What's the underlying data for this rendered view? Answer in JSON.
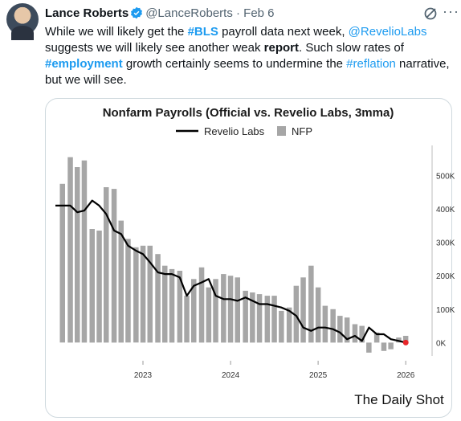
{
  "tweet": {
    "author_name": "Lance Roberts",
    "handle_date": "@LanceRoberts · Feb 6",
    "text_parts": [
      {
        "t": "While we will likely get the ",
        "s": "plain"
      },
      {
        "t": "#BLS",
        "s": "tagbold"
      },
      {
        "t": " payroll data next week, ",
        "s": "plain"
      },
      {
        "t": "@RevelioLabs",
        "s": "link"
      },
      {
        "t": " suggests we will likely see another weak ",
        "s": "plain"
      },
      {
        "t": "report",
        "s": "bold"
      },
      {
        "t": ". Such slow rates of ",
        "s": "plain"
      },
      {
        "t": "#employment",
        "s": "tagbold"
      },
      {
        "t": " growth certainly seems to undermine the ",
        "s": "plain"
      },
      {
        "t": "#reflation",
        "s": "link"
      },
      {
        "t": " narrative, but we will see.",
        "s": "plain"
      }
    ]
  },
  "icons": {
    "verified": "verified-badge-icon",
    "grok": "grok-icon",
    "more": "more-options-icon"
  },
  "colors": {
    "link": "#1d9bf0",
    "text": "#0f1419",
    "muted": "#536471",
    "bars": "#a6a6a6",
    "line": "#000000",
    "endpoint": "#e8262a"
  },
  "chart_data": {
    "type": "bar",
    "title": "Nonfarm Payrolls (Official vs. Revelio Labs, 3mma)",
    "legend": [
      "Revelio Labs",
      "NFP"
    ],
    "legend_position": "top",
    "y_ticks": [
      "0K",
      "100K",
      "200K",
      "300K",
      "400K",
      "500K"
    ],
    "x_ticks": [
      "2023",
      "2024",
      "2025",
      "2026"
    ],
    "ylim": [
      -40,
      590
    ],
    "xlim": [
      2022.0,
      2026.2
    ],
    "grid": false,
    "source": "The Daily Shot",
    "series": [
      {
        "name": "NFP",
        "kind": "bar",
        "x": [
          2022.08,
          2022.17,
          2022.25,
          2022.33,
          2022.42,
          2022.5,
          2022.58,
          2022.67,
          2022.75,
          2022.83,
          2022.92,
          2023.0,
          2023.08,
          2023.17,
          2023.25,
          2023.33,
          2023.42,
          2023.5,
          2023.58,
          2023.67,
          2023.75,
          2023.83,
          2023.92,
          2024.0,
          2024.08,
          2024.17,
          2024.25,
          2024.33,
          2024.42,
          2024.5,
          2024.58,
          2024.67,
          2024.75,
          2024.83,
          2024.92,
          2025.0,
          2025.08,
          2025.17,
          2025.25,
          2025.33,
          2025.42,
          2025.5,
          2025.58,
          2025.67,
          2025.75,
          2025.83,
          2025.92,
          2026.0
        ],
        "values": [
          475,
          555,
          525,
          545,
          340,
          335,
          465,
          460,
          365,
          310,
          285,
          290,
          290,
          265,
          230,
          220,
          215,
          140,
          190,
          225,
          165,
          190,
          205,
          200,
          195,
          155,
          150,
          145,
          140,
          140,
          95,
          105,
          170,
          195,
          230,
          165,
          110,
          100,
          80,
          75,
          55,
          50,
          -30,
          30,
          -25,
          -20,
          15,
          20
        ]
      },
      {
        "name": "Revelio Labs",
        "kind": "line",
        "x": [
          2022.0,
          2022.08,
          2022.17,
          2022.25,
          2022.33,
          2022.42,
          2022.5,
          2022.58,
          2022.67,
          2022.75,
          2022.83,
          2022.92,
          2023.0,
          2023.08,
          2023.17,
          2023.25,
          2023.33,
          2023.42,
          2023.5,
          2023.58,
          2023.67,
          2023.75,
          2023.83,
          2023.92,
          2024.0,
          2024.08,
          2024.17,
          2024.25,
          2024.33,
          2024.42,
          2024.5,
          2024.58,
          2024.67,
          2024.75,
          2024.83,
          2024.92,
          2025.0,
          2025.08,
          2025.17,
          2025.25,
          2025.33,
          2025.42,
          2025.5,
          2025.58,
          2025.67,
          2025.75,
          2025.83,
          2025.92,
          2026.0
        ],
        "values": [
          410,
          410,
          410,
          390,
          395,
          425,
          410,
          385,
          335,
          325,
          290,
          275,
          265,
          240,
          210,
          205,
          205,
          195,
          140,
          170,
          180,
          190,
          140,
          130,
          130,
          125,
          135,
          125,
          115,
          115,
          110,
          105,
          95,
          80,
          45,
          35,
          45,
          45,
          40,
          30,
          10,
          20,
          5,
          45,
          25,
          25,
          10,
          5,
          0
        ]
      }
    ]
  }
}
